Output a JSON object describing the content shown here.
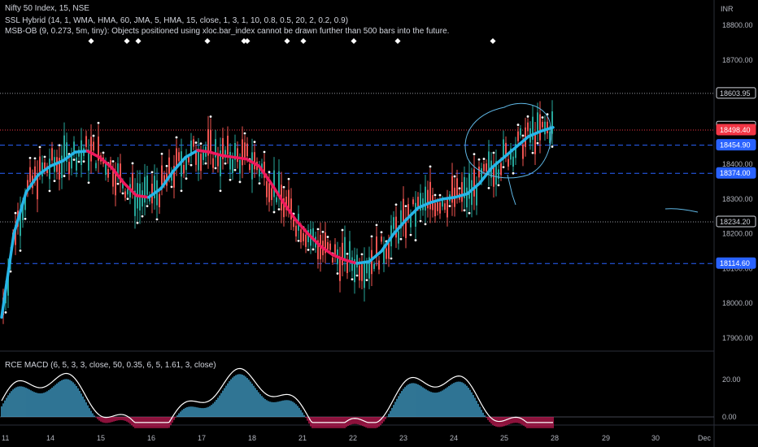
{
  "legend": {
    "main": "Nifty 50 Index, 15, NSE",
    "ssl": "SSL Hybrid (14, 1, WMA, HMA, 60, JMA, 5, HMA, 15, close, 1, 3, 1, 10, 0.8, 0.5, 20, 2, 0.2, 0.9)",
    "msb": "MSB-OB (9, 0.273, 5m, tiny): Objects positioned using xloc.bar_index cannot be drawn further than 500 bars into the future.",
    "osc": "RCE MACD (6, 5, 3, 3, close, 50, 0.35, 6, 5, 1.61, 3, close)"
  },
  "currency": "INR",
  "price_axis": {
    "ticks": [
      "18800.00",
      "18700.00",
      "18600.00",
      "18500.00",
      "18400.00",
      "18300.00",
      "18200.00",
      "18100.00",
      "18000.00",
      "17900.00"
    ],
    "tick_values": [
      18800,
      18700,
      18600,
      18500,
      18400,
      18300,
      18200,
      18100,
      18000,
      17900
    ]
  },
  "osc_axis": {
    "ticks": [
      "20.00",
      "0.00"
    ]
  },
  "time_axis": {
    "ticks": [
      "11",
      "14",
      "15",
      "16",
      "17",
      "18",
      "21",
      "22",
      "23",
      "24",
      "25",
      "28",
      "29",
      "30",
      "Dec"
    ]
  },
  "price_tags": [
    {
      "label": "18603.95",
      "value": 18603.95,
      "style": "outline",
      "line": "dotted"
    },
    {
      "label": "18507.30",
      "value": 18507.3,
      "style": "outline",
      "line": "none"
    },
    {
      "label": "18498.40",
      "value": 18498.4,
      "style": "red",
      "line": "red-dotted"
    },
    {
      "label": "18454.90",
      "value": 18454.9,
      "style": "blue",
      "line": "blue-dashed"
    },
    {
      "label": "18374.00",
      "value": 18374.0,
      "style": "blue",
      "line": "blue-dashed"
    },
    {
      "label": "18234.20",
      "value": 18234.2,
      "style": "outline",
      "line": "dotted"
    },
    {
      "label": "18114.60",
      "value": 18114.6,
      "style": "blue",
      "line": "blue-dashed"
    }
  ],
  "colors": {
    "ssl_up": "#26b5e8",
    "ssl_down": "#f0185e",
    "level": "#2962ff",
    "tag_red": "#f23645",
    "osc_up": "#4fc3f7",
    "osc_down": "#e91e63",
    "candle_up": "#26a69a",
    "candle_down": "#ef5350"
  },
  "chart_data": {
    "type": "line",
    "series": [
      {
        "name": "SSL Hybrid",
        "values": [
          17960,
          18200,
          18320,
          18370,
          18395,
          18410,
          18435,
          18438,
          18420,
          18390,
          18345,
          18310,
          18305,
          18330,
          18380,
          18420,
          18440,
          18435,
          18425,
          18420,
          18415,
          18395,
          18345,
          18290,
          18240,
          18200,
          18165,
          18140,
          18125,
          18115,
          18120,
          18150,
          18200,
          18240,
          18275,
          18290,
          18300,
          18305,
          18315,
          18345,
          18390,
          18420,
          18450,
          18480,
          18495,
          18506
        ]
      }
    ]
  }
}
